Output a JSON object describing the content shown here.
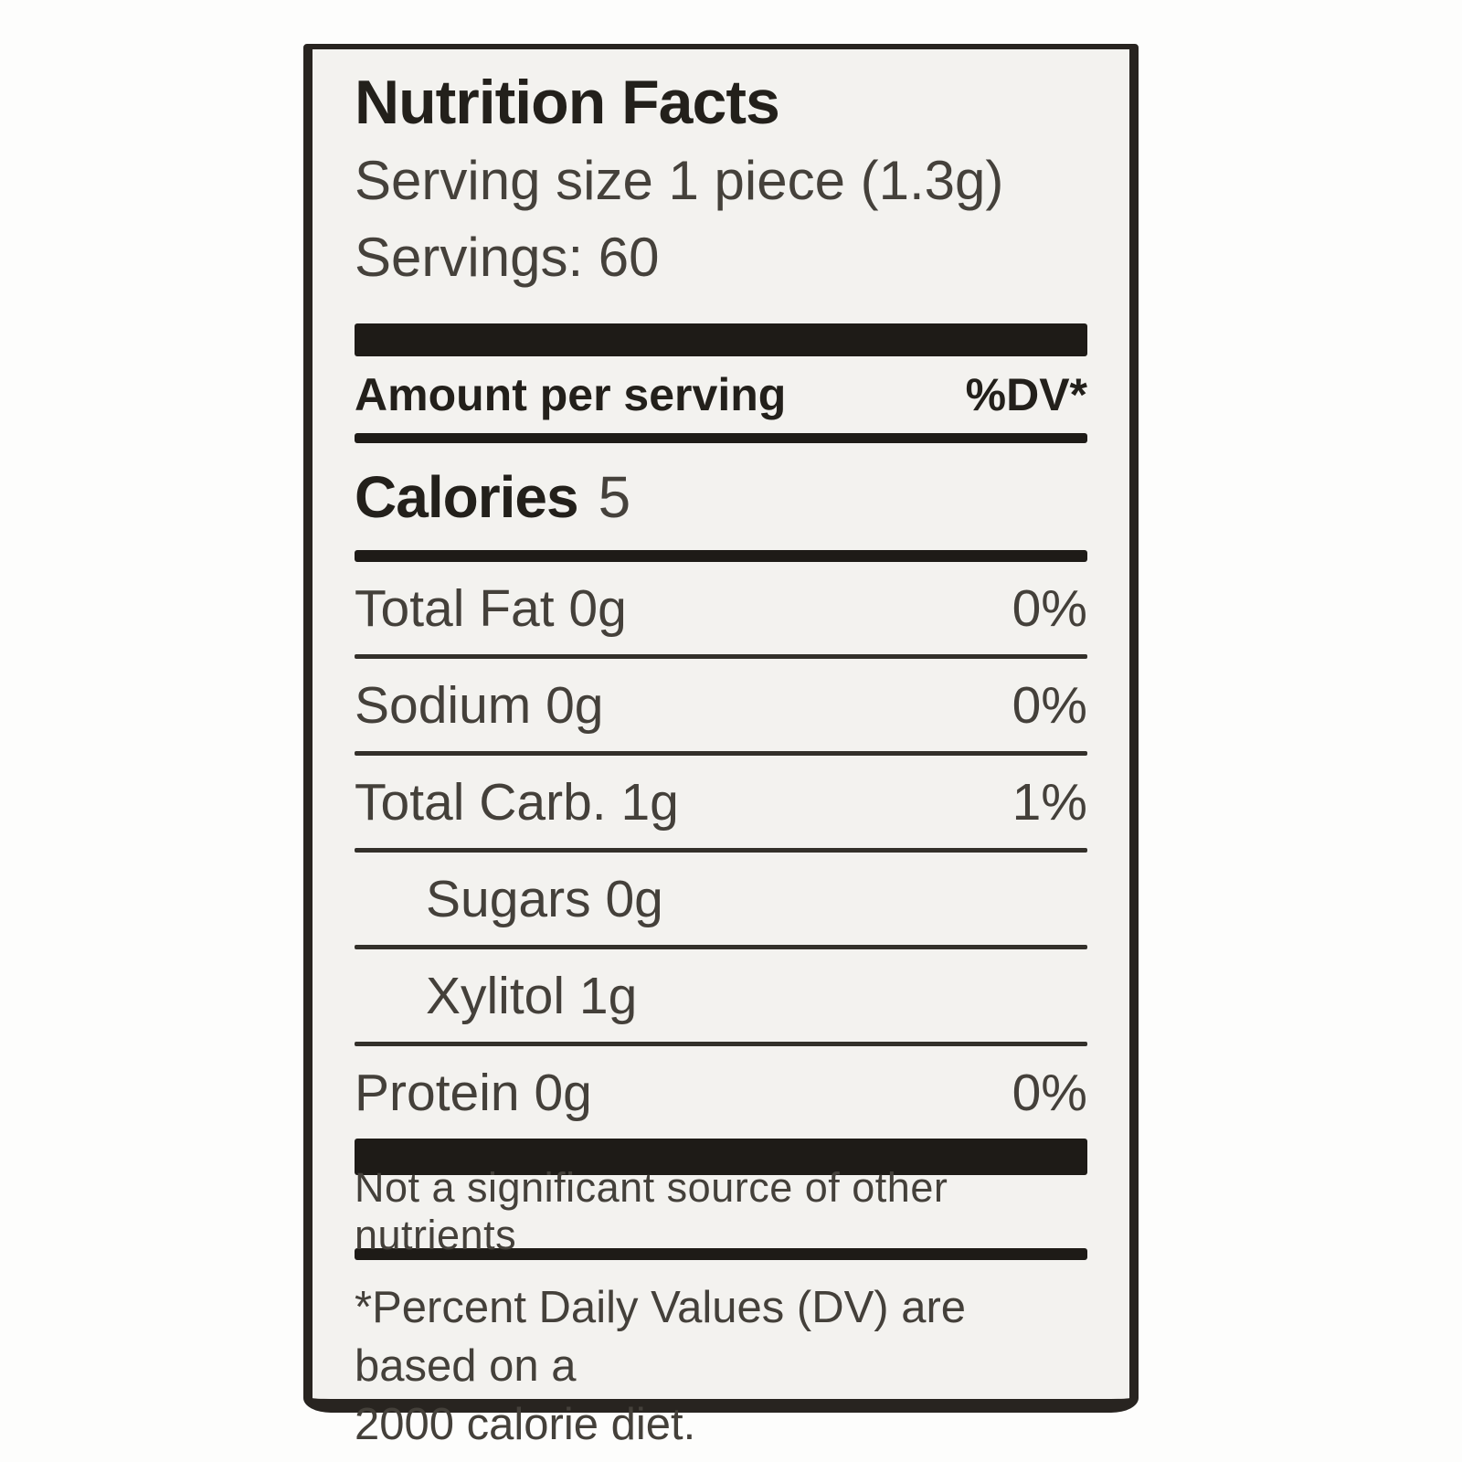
{
  "label": {
    "title": "Nutrition Facts",
    "serving_size_line": "Serving size 1 piece (1.3g)",
    "servings_line": "Servings: 60",
    "header": {
      "amount_label": "Amount per serving",
      "dv_label": "%DV*"
    },
    "calories": {
      "label": "Calories",
      "value": "5"
    },
    "rows": [
      {
        "name": "Total Fat 0g",
        "dv": "0%",
        "indent": false
      },
      {
        "name": "Sodium 0g",
        "dv": "0%",
        "indent": false
      },
      {
        "name": "Total Carb. 1g",
        "dv": "1%",
        "indent": false
      },
      {
        "name": "Sugars 0g",
        "dv": "",
        "indent": true
      },
      {
        "name": "Xylitol 1g",
        "dv": "",
        "indent": true
      },
      {
        "name": "Protein 0g",
        "dv": "0%",
        "indent": false
      }
    ],
    "not_significant_text": "Not a significant source of other nutrients",
    "footnote_line1": "*Percent Daily Values (DV) are based on a",
    "footnote_line2": "2000 calorie diet.",
    "colors": {
      "paper": "#f3f2ef",
      "ink_bold": "#23201b",
      "ink_light": "#44403a",
      "bar": "#1e1b17"
    }
  }
}
